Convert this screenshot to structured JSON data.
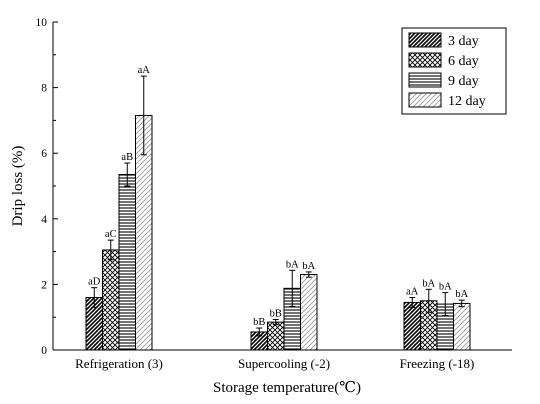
{
  "chart_data": {
    "type": "bar",
    "xlabel": "Storage temperature(℃)",
    "ylabel": "Drip loss (%)",
    "ylim": [
      0,
      10
    ],
    "yticks": [
      "0",
      "2",
      "4",
      "6",
      "8",
      "10"
    ],
    "grid": false,
    "legend_position": "top-right",
    "categories": [
      "Refrigeration (3)",
      "Supercooling (-2)",
      "Freezing (-18)"
    ],
    "series": [
      {
        "name": "3 day",
        "pattern": "diagonal-hatch",
        "values": [
          1.6,
          0.55,
          1.45
        ],
        "errors": [
          0.3,
          0.12,
          0.15
        ],
        "labels": [
          "aD",
          "bB",
          "aA"
        ]
      },
      {
        "name": "6 day",
        "pattern": "crosshatch",
        "values": [
          3.05,
          0.85,
          1.5
        ],
        "errors": [
          0.3,
          0.08,
          0.35
        ],
        "labels": [
          "aC",
          "bB",
          "bA"
        ]
      },
      {
        "name": "9 day",
        "pattern": "horizontal-lines",
        "values": [
          5.35,
          1.88,
          1.4
        ],
        "errors": [
          0.35,
          0.55,
          0.35
        ],
        "labels": [
          "aB",
          "bA",
          "bA"
        ]
      },
      {
        "name": "12 day",
        "pattern": "light-diagonal-hatch",
        "values": [
          7.15,
          2.3,
          1.42
        ],
        "errors": [
          1.2,
          0.08,
          0.1
        ],
        "labels": [
          "aA",
          "bA",
          "bA"
        ]
      }
    ]
  }
}
